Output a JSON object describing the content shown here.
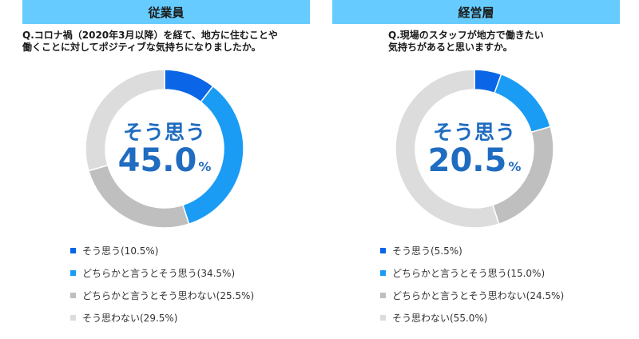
{
  "chart_data": [
    {
      "type": "pie",
      "title": "従業員",
      "question_line1": "Q.コロナ禍（2020年3月以降）を経て、地方に住むことや",
      "question_line2": "働くことに対してポジティブな気持ちになりましたか。",
      "center_label": "そう思う",
      "center_value": "45.0",
      "center_unit": "%",
      "categories": [
        "そう思う",
        "どちらかと言うとそう思う",
        "どちらかと言うとそう思わない",
        "そう思わない"
      ],
      "values": [
        10.5,
        34.5,
        25.5,
        29.5
      ],
      "legend": [
        "そう思う(10.5%)",
        "どちらかと言うとそう思う(34.5%)",
        "どちらかと言うとそう思わない(25.5%)",
        "そう思わない(29.5%)"
      ],
      "colors": [
        "#0a66e6",
        "#1a9cf5",
        "#bfbfbf",
        "#dcdcdc"
      ]
    },
    {
      "type": "pie",
      "title": "経営層",
      "question_line1": "Q.現場のスタッフが地方で働きたい",
      "question_line2": "気持ちがあると思いますか。",
      "center_label": "そう思う",
      "center_value": "20.5",
      "center_unit": "%",
      "categories": [
        "そう思う",
        "どちらかと言うとそう思う",
        "どちらかと言うとそう思わない",
        "そう思わない"
      ],
      "values": [
        5.5,
        15.0,
        24.5,
        55.0
      ],
      "legend": [
        "そう思う(5.5%)",
        "どちらかと言うとそう思う(15.0%)",
        "どちらかと言うとそう思わない(24.5%)",
        "そう思わない(55.0%)"
      ],
      "colors": [
        "#0a66e6",
        "#1a9cf5",
        "#bfbfbf",
        "#dcdcdc"
      ]
    }
  ]
}
